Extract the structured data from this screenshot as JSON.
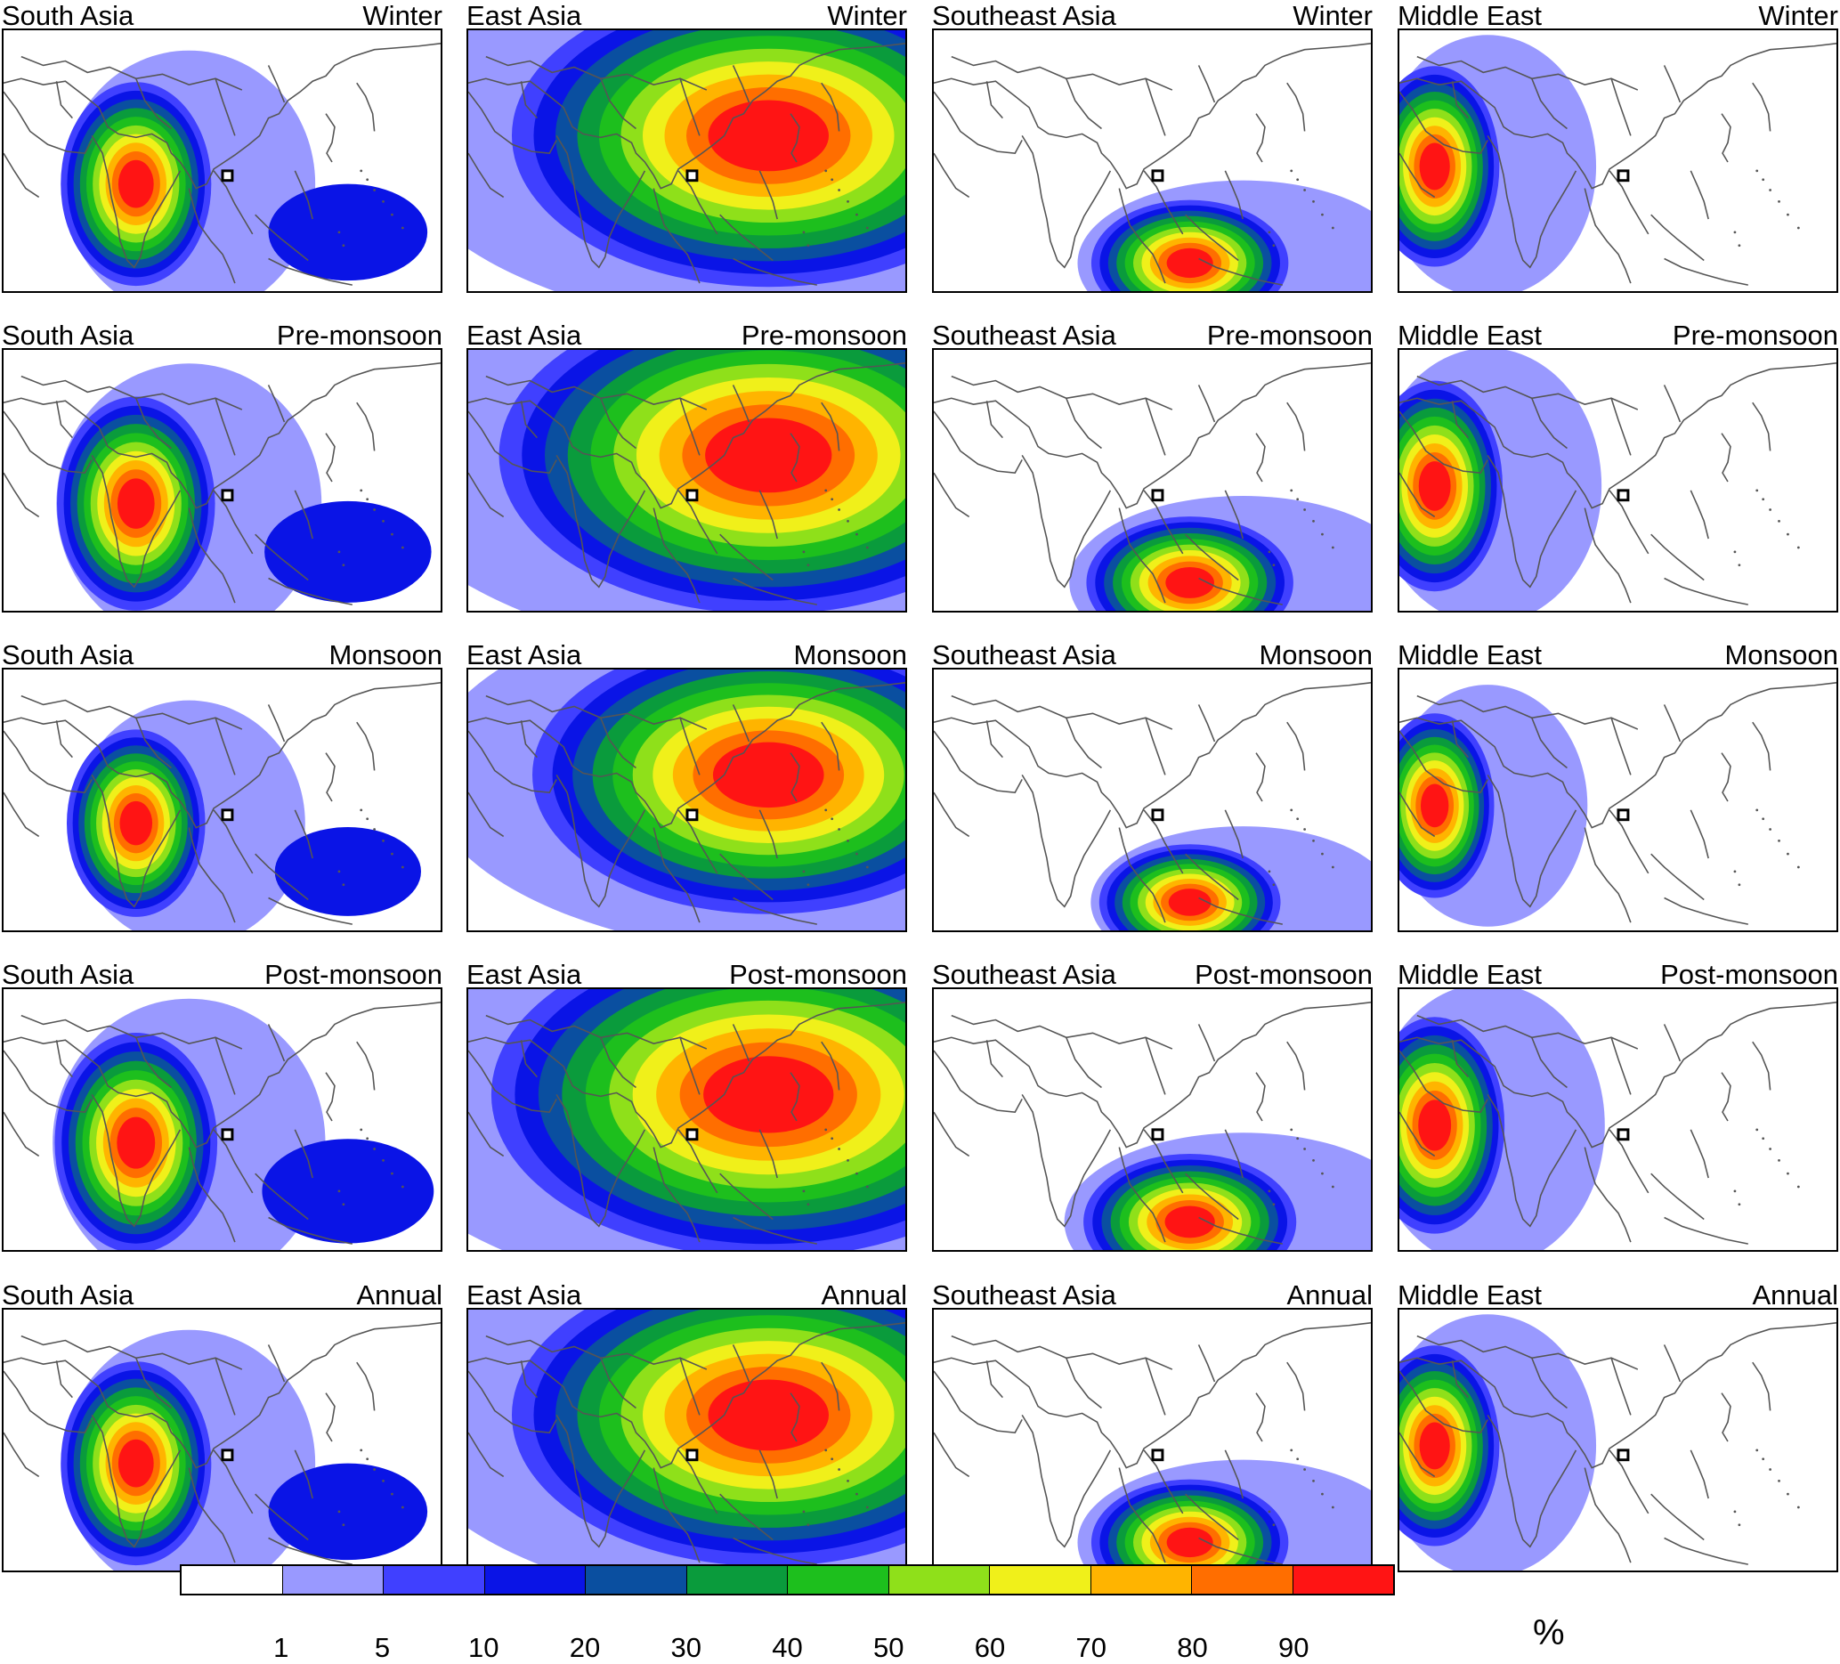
{
  "columns": [
    {
      "region": "South Asia",
      "focus": "south"
    },
    {
      "region": "East Asia",
      "focus": "east"
    },
    {
      "region": "Southeast Asia",
      "focus": "southeast"
    },
    {
      "region": "Middle East",
      "focus": "middle"
    }
  ],
  "rows": [
    {
      "season": "Winter"
    },
    {
      "season": "Pre-monsoon"
    },
    {
      "season": "Monsoon"
    },
    {
      "season": "Post-monsoon"
    },
    {
      "season": "Annual"
    }
  ],
  "colorbar": {
    "unit": "%",
    "colors": [
      "#ffffff",
      "#9999ff",
      "#4040ff",
      "#0a14e6",
      "#0a4fa0",
      "#0a9b3c",
      "#1dbf1d",
      "#8fe01a",
      "#f0f01a",
      "#ffb400",
      "#ff6e00",
      "#ff1414"
    ],
    "labels": [
      "1",
      "5",
      "10",
      "20",
      "30",
      "40",
      "50",
      "60",
      "70",
      "80",
      "90"
    ]
  },
  "receptor_marker": "square-marker-icon"
}
